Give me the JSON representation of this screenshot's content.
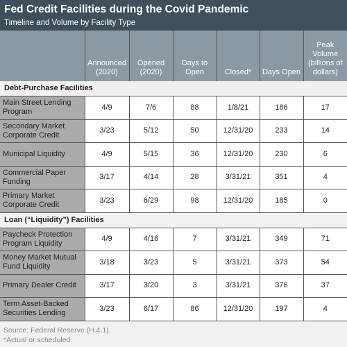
{
  "header": {
    "title": "Fed Credit Facilities during the Covid Pandemic",
    "subtitle": "Timeline and Volume by Facility Type"
  },
  "table": {
    "columns": [
      "Announced (2020)",
      "Opened (2020)",
      "Days to Open",
      "Closed*",
      "Days Open",
      "Peak Volume (billions of dollars)"
    ],
    "sections": [
      {
        "label": "Debt-Purchase Facilities",
        "rows": [
          [
            "Main Street Lending Program",
            "4/9",
            "7/6",
            88,
            "1/8/21",
            186,
            17
          ],
          [
            "Secondary Market Corporate Credit",
            "3/23",
            "5/12",
            50,
            "12/31/20",
            233,
            14
          ],
          [
            "Municipal Liquidity",
            "4/9",
            "5/15",
            36,
            "12/31/20",
            230,
            6
          ],
          [
            "Commercial Paper Funding",
            "3/17",
            "4/14",
            28,
            "3/31/21",
            351,
            4
          ],
          [
            "Primary Market Corporate Credit",
            "3/23",
            "6/29",
            98,
            "12/31/20",
            185,
            0
          ]
        ]
      },
      {
        "label": "Loan (“Liquidity”) Facilities",
        "rows": [
          [
            "Paycheck Protection Program Liquidity",
            "4/9",
            "4/16",
            7,
            "3/31/21",
            349,
            71
          ],
          [
            "Money Market Mutual Fund Liquidity",
            "3/18",
            "3/23",
            5,
            "3/31/21",
            373,
            54
          ],
          [
            "Primary Dealer Credit",
            "3/17",
            "3/20",
            3,
            "3/31/21",
            376,
            37
          ],
          [
            "Term Asset-Backed Securities Lending",
            "3/23",
            "6/17",
            86,
            "12/31/20",
            197,
            4
          ]
        ]
      }
    ]
  },
  "footer": {
    "source": "Source: Federal Reserve (H.4.1).",
    "note": "*Actual or scheduled"
  }
}
